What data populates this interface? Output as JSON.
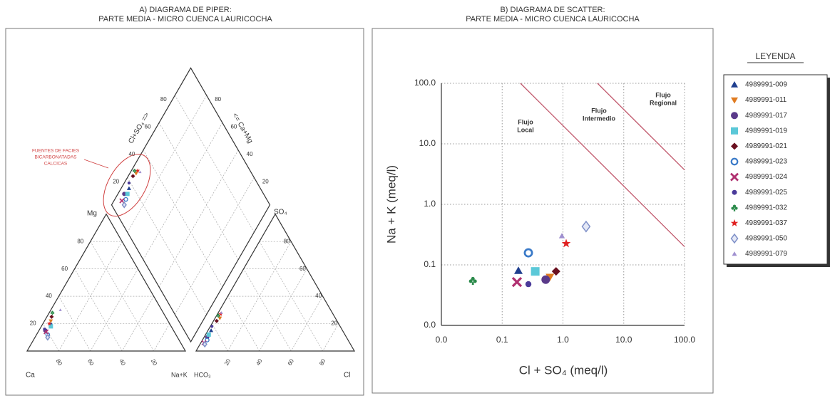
{
  "chart_data": [
    {
      "type": "piper",
      "title": "A)  DIAGRAMA DE PIPER:",
      "subtitle": "PARTE MEDIA - MICRO CUENCA LAURICOCHA",
      "corner_labels": {
        "ca": "Ca",
        "nak": "Na+K",
        "mg": "Mg",
        "hco3": "HCO₃",
        "cl": "Cl",
        "so4": "SO₄",
        "cl_so4": "Cl+SO₄ =>",
        "ca_mg": "<= Ca+Mg"
      },
      "annotation": [
        "FUENTES DE FACIES",
        "BICARBONATADAS",
        "CALCICAS"
      ],
      "ticks": [
        20,
        40,
        60,
        80
      ],
      "grid": true,
      "samples": [
        {
          "ca": 75,
          "mg": 20,
          "nak": 5,
          "hco3": 83,
          "so4": 15,
          "cl": 2
        },
        {
          "ca": 74,
          "mg": 22,
          "nak": 4,
          "hco3": 73,
          "so4": 24,
          "cl": 3
        },
        {
          "ca": 81,
          "mg": 15,
          "nak": 4,
          "hco3": 88,
          "so4": 10,
          "cl": 2
        },
        {
          "ca": 76,
          "mg": 18,
          "nak": 6,
          "hco3": 86,
          "so4": 12,
          "cl": 2
        },
        {
          "ca": 72,
          "mg": 25,
          "nak": 3,
          "hco3": 76,
          "so4": 22,
          "cl": 2
        },
        {
          "ca": 81,
          "mg": 12,
          "nak": 7,
          "hco3": 89,
          "so4": 8,
          "cl": 3
        },
        {
          "ca": 81,
          "mg": 14,
          "nak": 5,
          "hco3": 92,
          "so4": 6,
          "cl": 2
        },
        {
          "ca": 81,
          "mg": 16,
          "nak": 3,
          "hco3": 81,
          "so4": 18,
          "cl": 1
        },
        {
          "ca": 70,
          "mg": 28,
          "nak": 2,
          "hco3": 73,
          "so4": 26,
          "cl": 1
        },
        {
          "ca": 76,
          "mg": 20,
          "nak": 4,
          "hco3": 71,
          "so4": 27,
          "cl": 2
        },
        {
          "ca": 82,
          "mg": 10,
          "nak": 8,
          "hco3": 92,
          "so4": 5,
          "cl": 3
        },
        {
          "ca": 64,
          "mg": 30,
          "nak": 6,
          "hco3": 70,
          "so4": 28,
          "cl": 2
        }
      ]
    },
    {
      "type": "scatter",
      "title": "B)  DIAGRAMA DE SCATTER:",
      "subtitle": "PARTE MEDIA - MICRO CUENCA LAURICOCHA",
      "xlabel": "Cl + SO₄ (meq/l)",
      "ylabel": "Na + K (meq/l)",
      "log_x": true,
      "log_y": true,
      "grid": true,
      "xlim": [
        0.01,
        100
      ],
      "ylim": [
        0.01,
        100
      ],
      "xticks": [
        {
          "value": 0.01,
          "label": "0.0"
        },
        0.1,
        {
          "value": 1,
          "label": "1.0"
        },
        {
          "value": 10,
          "label": "10.0"
        },
        {
          "value": 100,
          "label": "100.0"
        }
      ],
      "yticks": [
        {
          "value": 0.01,
          "label": "0.0"
        },
        0.1,
        {
          "value": 1,
          "label": "1.0"
        },
        {
          "value": 10,
          "label": "10.0"
        },
        {
          "value": 100,
          "label": "100.0"
        }
      ],
      "legend_title": "LEYENDA",
      "legend_position": "right",
      "reference_lines": [
        {
          "color": "#c0566a",
          "x": [
            0.2,
            100
          ],
          "y": [
            100,
            0.2
          ]
        },
        {
          "color": "#c0566a",
          "x": [
            3.7,
            100
          ],
          "y": [
            100,
            3.7
          ]
        }
      ],
      "annotations": [
        [
          "Flujo",
          "Local"
        ],
        [
          "Flujo",
          "Intermedio"
        ],
        [
          "Flujo",
          "Regional"
        ]
      ],
      "series": [
        {
          "name": "4989991-009",
          "color": "#1f3f8f",
          "marker": "triangle",
          "x": [
            0.185
          ],
          "values": [
            0.08
          ]
        },
        {
          "name": "4989991-011",
          "color": "#e07b20",
          "marker": "triangle-down",
          "x": [
            0.61
          ],
          "values": [
            0.063
          ]
        },
        {
          "name": "4989991-017",
          "color": "#5a3a8a",
          "marker": "circle",
          "x": [
            0.52
          ],
          "values": [
            0.057
          ]
        },
        {
          "name": "4989991-019",
          "color": "#5bc8d8",
          "marker": "square",
          "x": [
            0.35
          ],
          "values": [
            0.078
          ]
        },
        {
          "name": "4989991-021",
          "color": "#6a1020",
          "marker": "diamond",
          "x": [
            0.77
          ],
          "values": [
            0.078
          ]
        },
        {
          "name": "4989991-023",
          "color": "#3a7ac8",
          "marker": "ring",
          "x": [
            0.27
          ],
          "values": [
            0.158
          ]
        },
        {
          "name": "4989991-024",
          "color": "#b03070",
          "marker": "cross",
          "x": [
            0.175
          ],
          "values": [
            0.052
          ]
        },
        {
          "name": "4989991-025",
          "color": "#4a3a9a",
          "marker": "dot",
          "x": [
            0.27
          ],
          "values": [
            0.048
          ]
        },
        {
          "name": "4989991-032",
          "color": "#2a8a4a",
          "marker": "club",
          "x": [
            0.033
          ],
          "values": [
            0.055
          ]
        },
        {
          "name": "4989991-037",
          "color": "#e02020",
          "marker": "star",
          "x": [
            1.13
          ],
          "values": [
            0.225
          ]
        },
        {
          "name": "4989991-050",
          "color": "#7f90c8",
          "marker": "diamond-open",
          "x": [
            2.4
          ],
          "values": [
            0.43
          ]
        },
        {
          "name": "4989991-079",
          "color": "#a090d0",
          "marker": "small-triangle",
          "x": [
            0.96
          ],
          "values": [
            0.3
          ]
        }
      ]
    }
  ]
}
